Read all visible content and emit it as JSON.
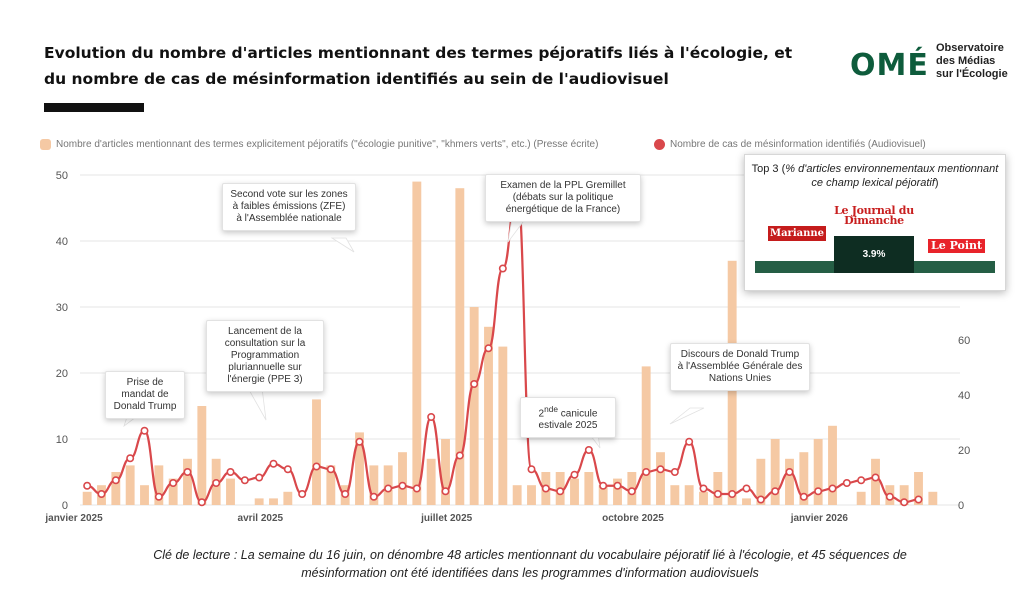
{
  "title": "Evolution du nombre d'articles mentionnant des termes péjoratifs liés à l'écologie, et du nombre de cas de mésinformation identifiés au sein de l'audiovisuel",
  "logo": {
    "mark": "OMÉ",
    "text": "Observatoire\ndes Médias\nsur l'Écologie"
  },
  "legend": {
    "bars": "Nombre d'articles mentionnant des termes explicitement péjoratifs (\"écologie punitive\", \"khmers verts\", etc.) (Presse écrite)",
    "line": "Nombre de cas de mésinformation identifiés (Audiovisuel)"
  },
  "colors": {
    "bar": "#f5c9a4",
    "line": "#d9484b",
    "grid": "#e6e6e6",
    "axis_text": "#555555"
  },
  "callouts": [
    {
      "text": "Prise de mandat de Donald Trump"
    },
    {
      "text": "Lancement de la consultation sur la Programmation pluriannuelle sur l'énergie (PPE 3)"
    },
    {
      "text": "Second vote sur les zones à faibles émissions (ZFE) à l'Assemblée nationale"
    },
    {
      "text": "Examen de la PPL Gremillet (débats sur la politique énergétique de la France)"
    },
    {
      "text_html": "2<sup>nde</sup> canicule estivale 2025",
      "text": "2nde canicule estivale 2025"
    },
    {
      "text": "Discours de Donald Trump à l'Assemblée Générale des Nations Unies"
    }
  ],
  "top3": {
    "title_prefix": "Top 3 (",
    "title_italic": "% d'articles environnementaux mentionnant ce champ lexical péjoratif",
    "title_suffix": ")",
    "outlets": [
      "Marianne",
      "Le Journal du Dimanche",
      "Le Point"
    ],
    "highlight_value": "3.9%"
  },
  "caption": "Clé de lecture : La semaine du 16 juin, on dénombre 48 articles mentionnant du vocabulaire péjoratif lié à l'écologie, et 45 séquences de mésinformation ont été identifiées dans les programmes d'information audiovisuels",
  "chart_data": {
    "type": "bar",
    "title": "Evolution du nombre d'articles mentionnant des termes péjoratifs liés à l'écologie, et du nombre de cas de mésinformation identifiés au sein de l'audiovisuel",
    "xlabel": "",
    "x_tick_labels": [
      "janvier 2025",
      "avril 2025",
      "juillet 2025",
      "octobre 2025",
      "janvier 2026"
    ],
    "x_tick_week_index": [
      0,
      13,
      26,
      39,
      52
    ],
    "y_left": {
      "label": "",
      "ticks": [
        0,
        10,
        20,
        30,
        40,
        50
      ],
      "lim": [
        0,
        50
      ]
    },
    "y_right": {
      "label": "",
      "ticks": [
        0,
        20,
        40,
        60
      ],
      "lim": [
        0,
        120
      ]
    },
    "series": [
      {
        "name": "Nombre d'articles mentionnant des termes explicitement péjoratifs (\"écologie punitive\", \"khmers verts\", etc.) (Presse écrite)",
        "type": "bar",
        "axis": "left",
        "values": [
          2,
          3,
          5,
          6,
          3,
          6,
          4,
          7,
          15,
          7,
          4,
          0,
          1,
          1,
          2,
          0,
          16,
          6,
          3,
          11,
          6,
          6,
          8,
          49,
          7,
          10,
          48,
          30,
          27,
          24,
          3,
          3,
          5,
          5,
          4,
          5,
          3,
          4,
          5,
          21,
          8,
          3,
          3,
          2,
          5,
          37,
          1,
          7,
          10,
          7,
          8,
          10,
          12,
          0,
          2,
          7,
          3,
          3,
          5,
          2
        ]
      },
      {
        "name": "Nombre de cas de mésinformation identifiés (Audiovisuel)",
        "type": "line",
        "axis": "right",
        "values": [
          7,
          4,
          9,
          17,
          27,
          3,
          8,
          12,
          1,
          8,
          12,
          9,
          10,
          15,
          13,
          4,
          14,
          13,
          4,
          23,
          3,
          6,
          7,
          6,
          32,
          5,
          18,
          44,
          57,
          86,
          114,
          13,
          6,
          5,
          11,
          20,
          7,
          7,
          5,
          12,
          13,
          12,
          23,
          6,
          4,
          4,
          6,
          2,
          5,
          12,
          3,
          5,
          6,
          8,
          9,
          10,
          3,
          1,
          2
        ]
      }
    ],
    "annotations": [
      "Prise de mandat de Donald Trump",
      "Lancement de la consultation sur la Programmation pluriannuelle sur l'énergie (PPE 3)",
      "Second vote sur les zones à faibles émissions (ZFE) à l'Assemblée nationale",
      "Examen de la PPL Gremillet (débats sur la politique énergétique de la France)",
      "2nde canicule estivale 2025",
      "Discours de Donald Trump à l'Assemblée Générale des Nations Unies"
    ]
  }
}
